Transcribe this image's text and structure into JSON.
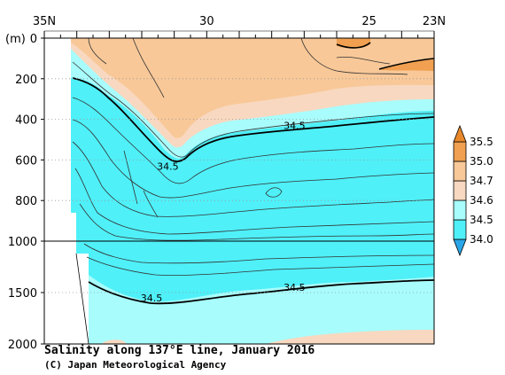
{
  "chart_data": {
    "type": "contour",
    "title": "Salinity along 137°E line, January 2016",
    "credit": "(C) Japan Meteorological Agency",
    "x_axis": {
      "ticks": [
        {
          "value": 35,
          "label": "35N"
        },
        {
          "value": 30,
          "label": "30"
        },
        {
          "value": 25,
          "label": "25"
        },
        {
          "value": 23,
          "label": "23N"
        }
      ],
      "range": [
        35,
        23
      ]
    },
    "y_axis": {
      "unit_label": "(m)",
      "upper_ticks": [
        0,
        200,
        400,
        600,
        800,
        1000
      ],
      "lower_ticks": [
        1500,
        2000
      ],
      "range": [
        0,
        2000
      ]
    },
    "colorbar": {
      "levels": [
        34.0,
        34.5,
        34.6,
        34.7,
        35.0,
        35.5
      ],
      "labels": [
        "34.0",
        "34.5",
        "34.6",
        "34.7",
        "35.0",
        "35.5"
      ],
      "colors": [
        "#2aa6e8",
        "#4ff0f8",
        "#a8fcfc",
        "#f8d8c0",
        "#f8c898",
        "#f0a050",
        "#e8882a"
      ]
    },
    "contour_labels": [
      {
        "text": "34.5",
        "lat": 27.3,
        "depth": 430
      },
      {
        "text": "34.5",
        "lat": 31.2,
        "depth": 630
      },
      {
        "text": "34.5",
        "lat": 27.3,
        "depth": 1450
      },
      {
        "text": "34.5",
        "lat": 31.7,
        "depth": 1550
      }
    ]
  }
}
